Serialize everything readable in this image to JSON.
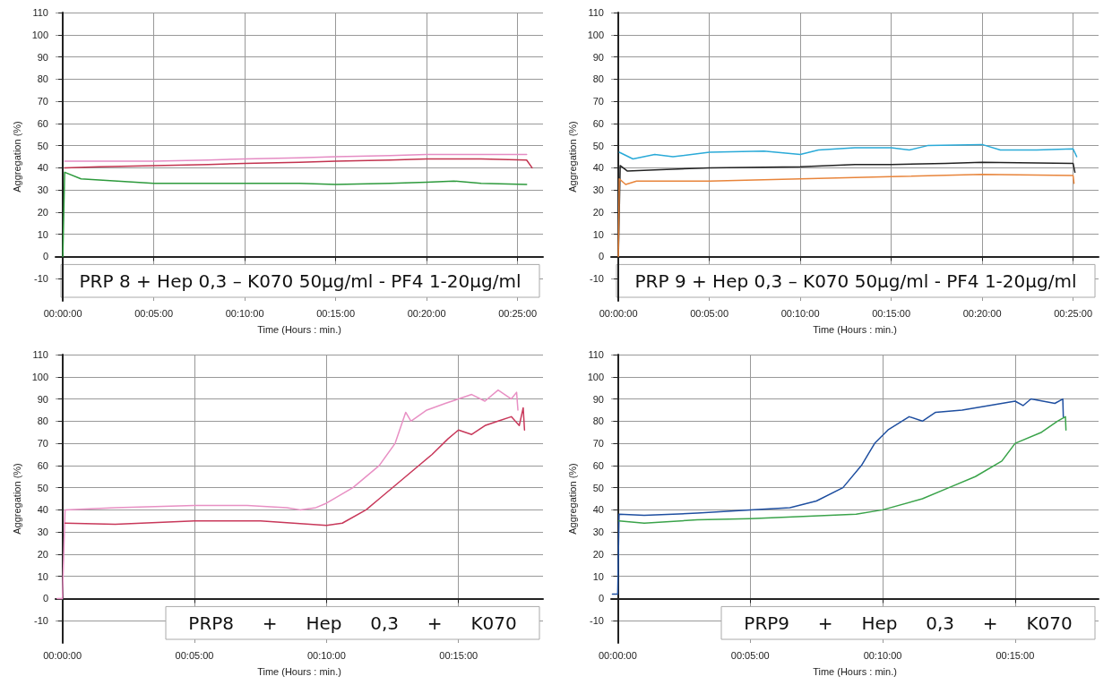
{
  "chart_data": [
    {
      "type": "line",
      "xlabel": "Time (Hours : min.)",
      "ylabel": "Aggregation (%)",
      "annotations": [
        "PRP 8 + Hep 0,3 – K070 50µg/ml - PF4 1-20µg/ml"
      ],
      "xlim": [
        -0.4,
        26.4
      ],
      "xticks": [
        {
          "value": 0,
          "label": "00:00:00"
        },
        {
          "value": 5,
          "label": "00:05:00"
        },
        {
          "value": 10,
          "label": "00:10:00"
        },
        {
          "value": 15,
          "label": "00:15:00"
        },
        {
          "value": 20,
          "label": "00:20:00"
        },
        {
          "value": 25,
          "label": "00:25:00"
        }
      ],
      "ylim": [
        -20,
        110
      ],
      "yticks": [
        -10,
        0,
        10,
        20,
        30,
        40,
        50,
        60,
        70,
        80,
        90,
        100,
        110
      ],
      "grid": true,
      "marker": "none",
      "line_style": "solid",
      "series": [
        {
          "color": "#e58cc4",
          "x": [
            0.1,
            2,
            5,
            8,
            10,
            13,
            15,
            18,
            20,
            23,
            25.5
          ],
          "values": [
            43,
            43,
            43,
            43.5,
            44,
            44.5,
            45,
            45.5,
            46,
            46,
            46
          ]
        },
        {
          "color": "#c2334f",
          "x": [
            0.1,
            2,
            5,
            8,
            10,
            13,
            15,
            18,
            20,
            23,
            25.5,
            25.8
          ],
          "values": [
            40,
            40.5,
            41,
            41.5,
            42,
            42.5,
            43,
            43.5,
            44,
            44,
            43.5,
            40
          ]
        },
        {
          "color": "#2d9a3c",
          "x": [
            0,
            0.1,
            1,
            3,
            5,
            8,
            10,
            13,
            15,
            18,
            20,
            21.5,
            23,
            25.5
          ],
          "values": [
            0,
            38,
            35,
            34,
            33,
            33,
            33,
            33,
            32.5,
            33,
            33.5,
            34,
            33,
            32.5
          ]
        }
      ]
    },
    {
      "type": "line",
      "xlabel": "Time (Hours : min.)",
      "ylabel": "Aggregation (%)",
      "annotations": [
        "PRP 9 + Hep 0,3 – K070 50µg/ml - PF4 1-20µg/ml"
      ],
      "xlim": [
        -0.4,
        26.4
      ],
      "xticks": [
        {
          "value": 0,
          "label": "00:00:00"
        },
        {
          "value": 5,
          "label": "00:05:00"
        },
        {
          "value": 10,
          "label": "00:10:00"
        },
        {
          "value": 15,
          "label": "00:15:00"
        },
        {
          "value": 20,
          "label": "00:20:00"
        },
        {
          "value": 25,
          "label": "00:25:00"
        }
      ],
      "ylim": [
        -20,
        110
      ],
      "yticks": [
        -10,
        0,
        10,
        20,
        30,
        40,
        50,
        60,
        70,
        80,
        90,
        100,
        110
      ],
      "grid": true,
      "marker": "none",
      "line_style": "solid",
      "series": [
        {
          "color": "#2aaad8",
          "x": [
            0.05,
            0.8,
            2,
            3,
            5,
            8,
            10,
            11,
            13,
            15,
            16,
            17,
            20,
            21,
            23,
            25,
            25.2
          ],
          "values": [
            47,
            44,
            46,
            45,
            47,
            47.5,
            46,
            48,
            49,
            49,
            48,
            50,
            50.5,
            48,
            48,
            48.5,
            45
          ]
        },
        {
          "color": "#222222",
          "x": [
            0,
            0.1,
            0.5,
            2,
            5,
            10,
            13,
            15,
            18,
            20,
            25,
            25.1
          ],
          "values": [
            0,
            41,
            38.5,
            39,
            40,
            40.5,
            41.5,
            41.5,
            42,
            42.5,
            42,
            38
          ]
        },
        {
          "color": "#e8843a",
          "x": [
            0,
            0.05,
            0.4,
            1,
            5,
            10,
            15,
            20,
            25,
            25.05
          ],
          "values": [
            0,
            35,
            32.5,
            34,
            34,
            35,
            36,
            37,
            36.5,
            33
          ]
        }
      ]
    },
    {
      "type": "line",
      "xlabel": "Time (Hours : min.)",
      "ylabel": "Aggregation (%)",
      "annotations": [
        "PRP8     +     Hep     0,3     +     K070"
      ],
      "xlim": [
        -0.26,
        18.2
      ],
      "xticks": [
        {
          "value": 0,
          "label": "00:00:00"
        },
        {
          "value": 5,
          "label": "00:05:00"
        },
        {
          "value": 10,
          "label": "00:10:00"
        },
        {
          "value": 15,
          "label": "00:15:00"
        }
      ],
      "ylim": [
        -20,
        110
      ],
      "yticks": [
        -10,
        0,
        10,
        20,
        30,
        40,
        50,
        60,
        70,
        80,
        90,
        100,
        110
      ],
      "grid": true,
      "marker": "none",
      "line_style": "solid",
      "series": [
        {
          "color": "#e890c4",
          "x": [
            -0.2,
            0,
            0.1,
            2,
            5,
            7,
            8.5,
            9,
            9.6,
            10,
            11,
            12,
            12.6,
            13,
            13.2,
            13.8,
            14.5,
            15,
            15.5,
            16,
            16.5,
            17,
            17.2,
            17.25
          ],
          "values": [
            0,
            0,
            40,
            41,
            42,
            42,
            41,
            40,
            41,
            43,
            50,
            60,
            70,
            84,
            80,
            85,
            88,
            90,
            92,
            89,
            94,
            90,
            93,
            85
          ]
        },
        {
          "color": "#c8385a",
          "x": [
            0.1,
            2,
            5,
            7.5,
            10,
            10.6,
            11.5,
            12,
            13,
            14,
            14.6,
            15,
            15.5,
            16,
            16.5,
            17,
            17.3,
            17.45,
            17.5
          ],
          "values": [
            34,
            33.5,
            35,
            35,
            33,
            34,
            40,
            45,
            55,
            65,
            72,
            76,
            74,
            78,
            80,
            82,
            78,
            86,
            76
          ]
        }
      ]
    },
    {
      "type": "line",
      "xlabel": "Time (Hours : min.)",
      "ylabel": "Aggregation (%)",
      "annotations": [
        "PRP9     +     Hep     0,3     +     K070"
      ],
      "xlim": [
        -0.25,
        18.15
      ],
      "xticks": [
        {
          "value": 0,
          "label": "00:00:00"
        },
        {
          "value": 5,
          "label": "00:05:00"
        },
        {
          "value": 10,
          "label": "00:10:00"
        },
        {
          "value": 15,
          "label": "00:15:00"
        }
      ],
      "ylim": [
        -20,
        110
      ],
      "yticks": [
        -10,
        0,
        10,
        20,
        30,
        40,
        50,
        60,
        70,
        80,
        90,
        100,
        110
      ],
      "grid": true,
      "marker": "none",
      "line_style": "solid",
      "series": [
        {
          "color": "#1f4fa0",
          "x": [
            -0.2,
            0,
            0.05,
            1,
            3,
            5,
            6.5,
            7.5,
            8.5,
            9.2,
            9.7,
            10.2,
            11,
            11.5,
            12,
            13,
            14,
            15,
            15.3,
            15.6,
            16.5,
            16.8,
            16.82
          ],
          "values": [
            2,
            2,
            38,
            37.5,
            38.5,
            40,
            41,
            44,
            50,
            60,
            70,
            76,
            82,
            80,
            84,
            85,
            87,
            89,
            87,
            90,
            88,
            90,
            82
          ]
        },
        {
          "color": "#3aa34a",
          "x": [
            0.05,
            1,
            3,
            5,
            7,
            9,
            10,
            11.5,
            12.5,
            13.5,
            14.5,
            15,
            16,
            16.6,
            16.9,
            16.92
          ],
          "values": [
            35,
            34,
            35.5,
            36,
            37,
            38,
            40,
            45,
            50,
            55,
            62,
            70,
            75,
            80,
            82,
            76
          ]
        }
      ]
    }
  ]
}
